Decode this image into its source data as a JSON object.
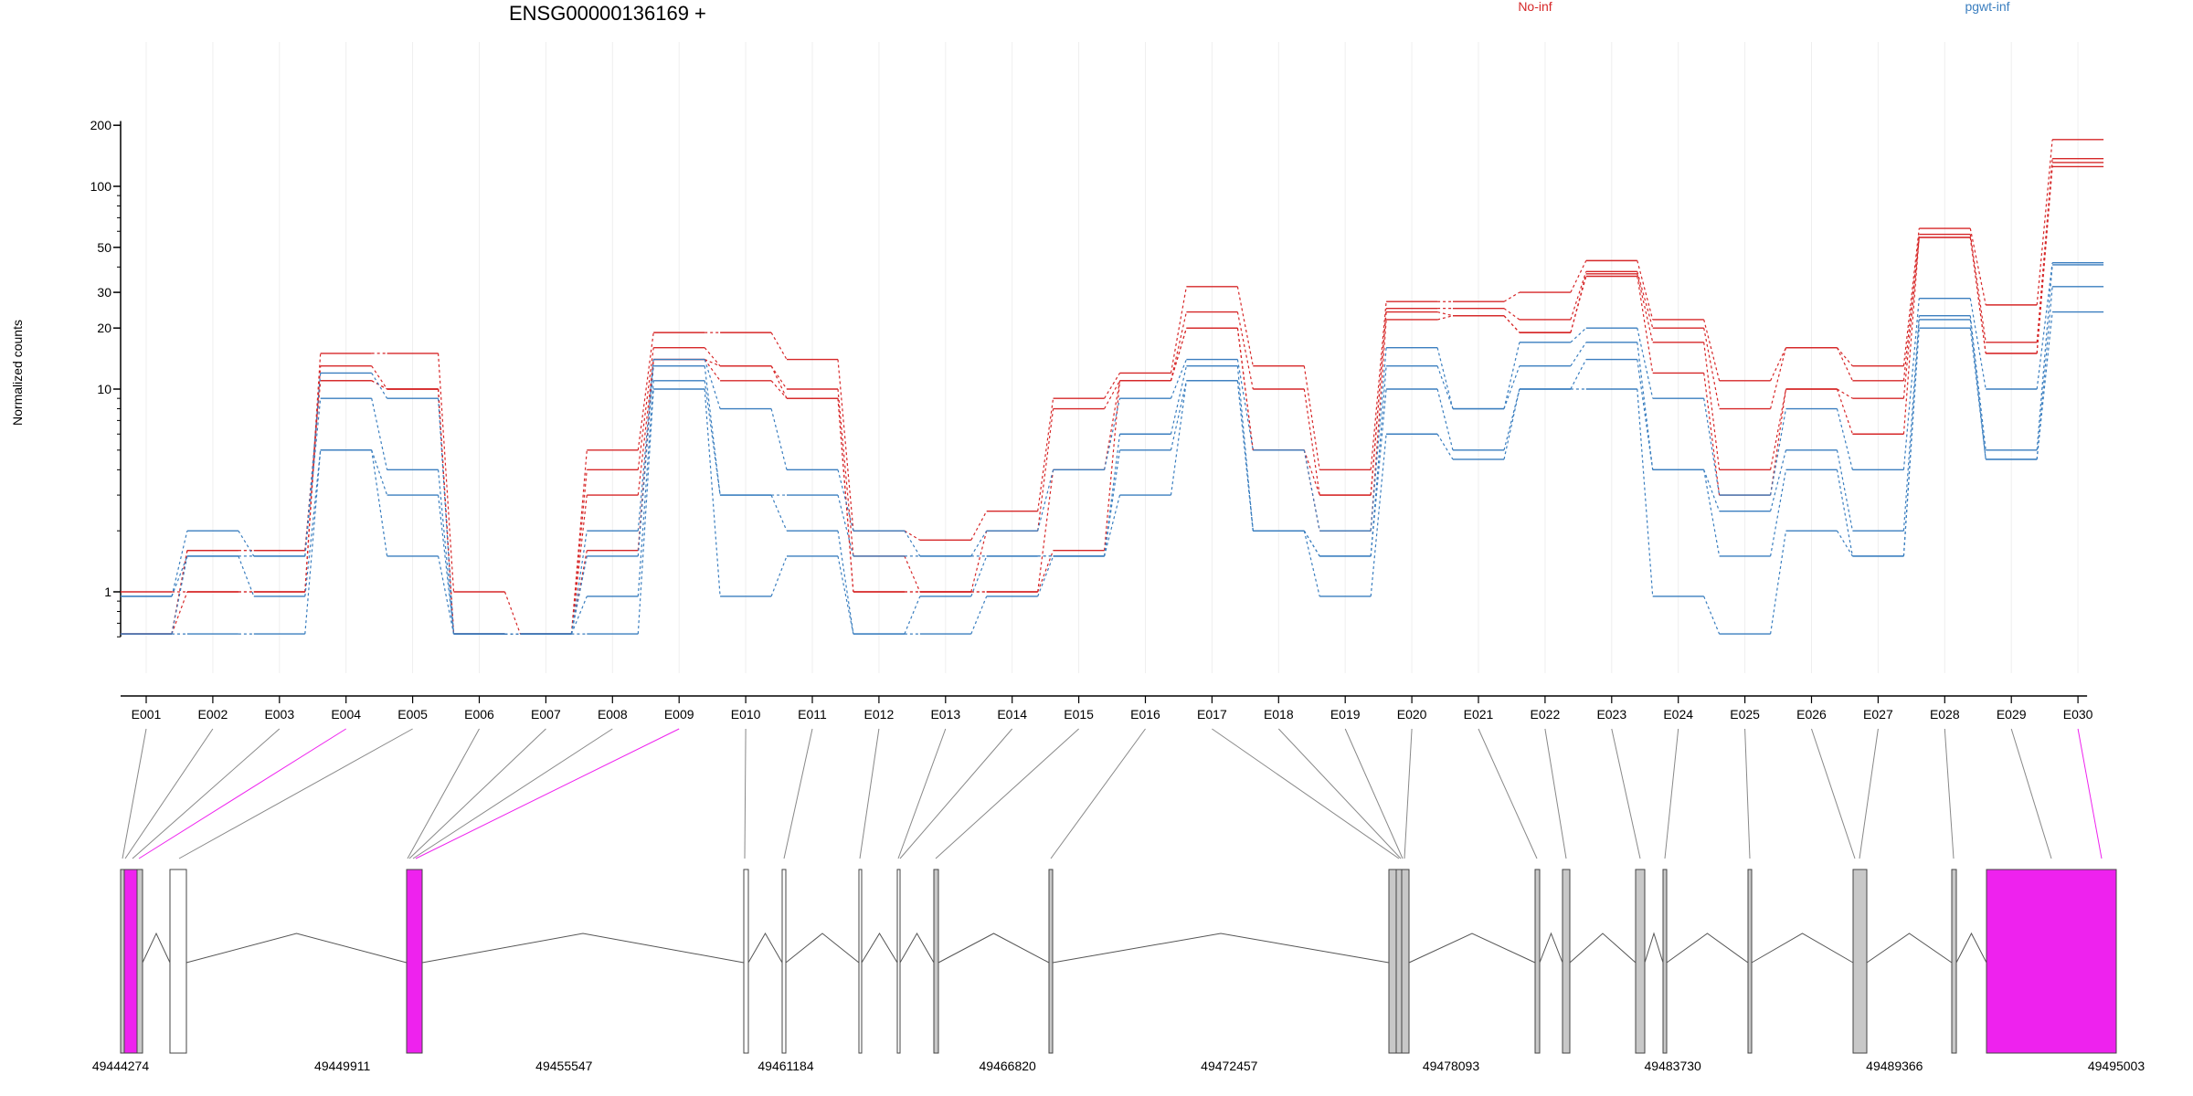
{
  "chart_data": {
    "type": "line",
    "title": "ENSG00000136169 +",
    "ylabel": "Normalized counts",
    "yscale": "log",
    "ylim": [
      0.6,
      210
    ],
    "yticks": [
      {
        "value": 1,
        "label": "1"
      },
      {
        "value": 10,
        "label": "10"
      },
      {
        "value": 20,
        "label": "20"
      },
      {
        "value": 30,
        "label": "30"
      },
      {
        "value": 50,
        "label": "50"
      },
      {
        "value": 100,
        "label": "100"
      },
      {
        "value": 200,
        "label": "200"
      }
    ],
    "categories": [
      "E001",
      "E002",
      "E003",
      "E004",
      "E005",
      "E006",
      "E007",
      "E008",
      "E009",
      "E010",
      "E011",
      "E012",
      "E013",
      "E014",
      "E015",
      "E016",
      "E017",
      "E018",
      "E019",
      "E020",
      "E021",
      "E022",
      "E023",
      "E024",
      "E025",
      "E026",
      "E027",
      "E028",
      "E029",
      "E030"
    ],
    "legend": [
      {
        "label": "No-inf",
        "color": "#d62728"
      },
      {
        "label": "pgwt-inf",
        "color": "#3a7ebf"
      }
    ],
    "legend_position": "top-right",
    "series": [
      {
        "group": "No-inf",
        "color": "#d62728",
        "values": [
          1.0,
          1.0,
          1.0,
          15,
          15,
          1.0,
          0.62,
          5,
          19,
          19,
          14,
          2,
          1.8,
          2.5,
          9,
          12,
          32,
          13,
          4,
          27,
          27,
          30,
          43,
          22,
          11,
          16,
          13,
          62,
          26,
          170
        ]
      },
      {
        "group": "No-inf",
        "color": "#d62728",
        "values": [
          0.62,
          1.0,
          1.0,
          13,
          10,
          0.62,
          0.62,
          4,
          16,
          13,
          10,
          1.5,
          1.0,
          2.0,
          8,
          11,
          24,
          10,
          3,
          25,
          25,
          22,
          38,
          20,
          8,
          16,
          11,
          58,
          17,
          137
        ]
      },
      {
        "group": "No-inf",
        "color": "#d62728",
        "values": [
          0.62,
          1.6,
          1.6,
          11,
          10,
          0.62,
          0.62,
          3,
          14,
          13,
          9,
          1.0,
          1.0,
          1.0,
          4,
          11,
          20,
          5,
          3,
          24,
          23,
          19,
          37,
          17,
          4,
          10,
          9,
          56,
          15,
          131
        ]
      },
      {
        "group": "No-inf",
        "color": "#d62728",
        "values": [
          0.62,
          1.6,
          1.6,
          11,
          10,
          0.62,
          0.62,
          1.6,
          14,
          11,
          9,
          1.0,
          1.0,
          1.0,
          1.6,
          11,
          20,
          5,
          2,
          22,
          23,
          19,
          36,
          12,
          3,
          10,
          6,
          56,
          15,
          125
        ]
      },
      {
        "group": "pgwt-inf",
        "color": "#3a7ebf",
        "values": [
          0.95,
          2.0,
          1.5,
          12,
          9,
          0.62,
          0.62,
          2,
          14,
          8,
          4,
          2,
          1.5,
          2,
          4,
          9,
          14,
          5,
          2,
          16,
          8,
          17,
          20,
          9,
          3,
          8,
          4,
          28,
          10,
          42
        ]
      },
      {
        "group": "pgwt-inf",
        "color": "#3a7ebf",
        "values": [
          0.95,
          1.5,
          1.5,
          9,
          4,
          0.62,
          0.62,
          1.5,
          13,
          3,
          3,
          1.5,
          1.5,
          1.5,
          1.5,
          6,
          13,
          2,
          1.5,
          13,
          8,
          13,
          17,
          4,
          2.5,
          5,
          2,
          23,
          5,
          41
        ]
      },
      {
        "group": "pgwt-inf",
        "color": "#3a7ebf",
        "values": [
          0.62,
          1.5,
          0.95,
          5,
          3,
          0.62,
          0.62,
          0.95,
          11,
          3,
          2,
          0.62,
          0.95,
          1.5,
          1.5,
          5,
          11,
          2,
          1.5,
          10,
          5,
          10,
          14,
          4,
          1.5,
          4,
          1.5,
          22,
          4.5,
          32
        ]
      },
      {
        "group": "pgwt-inf",
        "color": "#3a7ebf",
        "values": [
          0.62,
          0.62,
          0.62,
          5,
          1.5,
          0.62,
          0.62,
          0.62,
          10,
          0.95,
          1.5,
          0.62,
          0.62,
          0.95,
          1.5,
          3,
          11,
          2,
          0.95,
          6,
          4.5,
          10,
          10,
          0.95,
          0.62,
          2,
          1.5,
          20,
          4.5,
          24
        ]
      }
    ],
    "gene_model": {
      "coordinate_labels": [
        "49444274",
        "49449911",
        "49455547",
        "49461184",
        "49466820",
        "49472457",
        "49478093",
        "49483730",
        "49489366",
        "49495003"
      ],
      "highlighted_color": "#ee22ee",
      "exon_color": "#c8c8c8"
    }
  }
}
